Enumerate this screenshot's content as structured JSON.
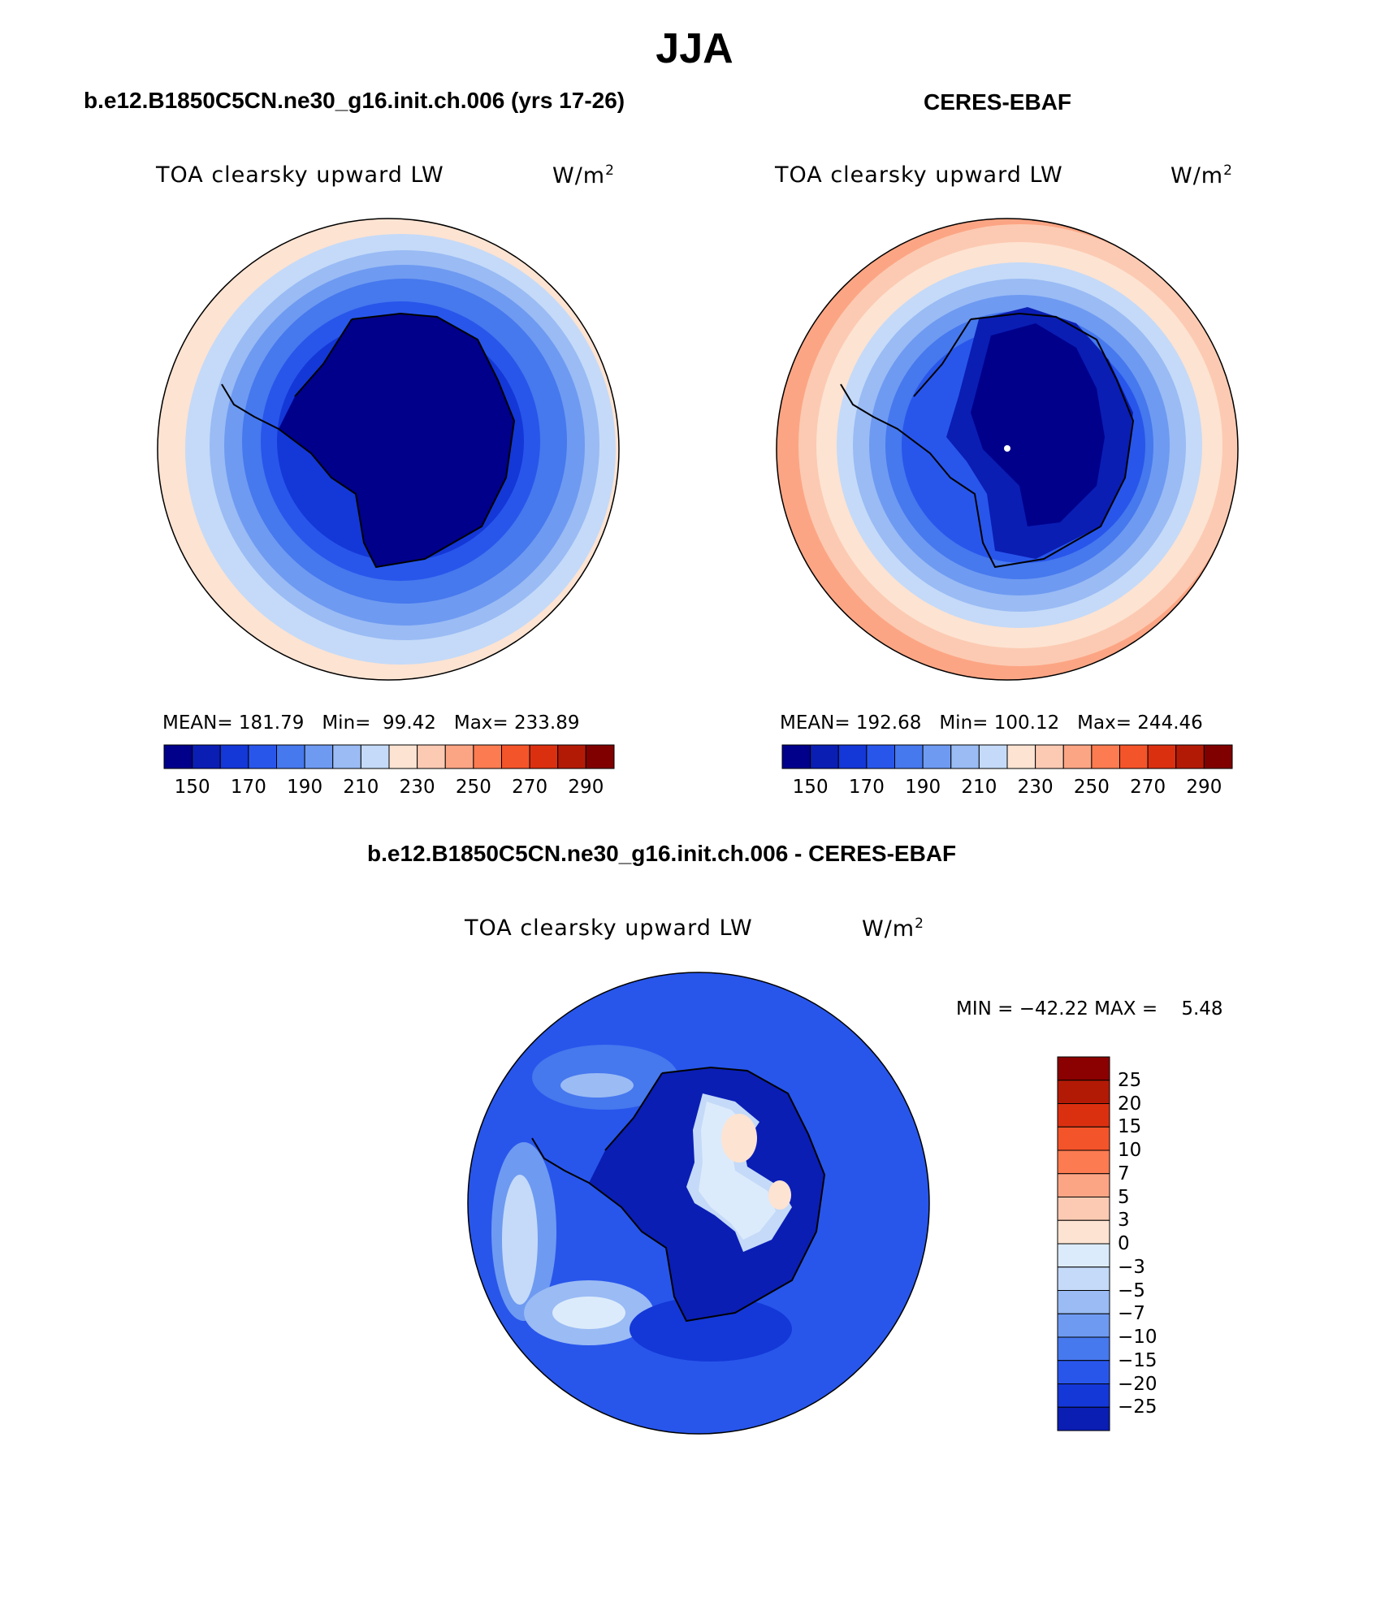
{
  "page": {
    "title": "JJA"
  },
  "panels": {
    "model": {
      "title": "b.e12.B1850C5CN.ne30_g16.init.ch.006 (yrs 17-26)",
      "variable": "TOA clearsky upward LW",
      "units_base": "W/m",
      "units_exp": "2",
      "stats": {
        "mean_label": "MEAN=",
        "mean": "181.79",
        "min_label": "Min=",
        "min": "99.42",
        "max_label": "Max=",
        "max": "233.89"
      }
    },
    "obs": {
      "title": "CERES-EBAF",
      "variable": "TOA clearsky upward LW",
      "units_base": "W/m",
      "units_exp": "2",
      "stats": {
        "mean_label": "MEAN=",
        "mean": "192.68",
        "min_label": "Min=",
        "min": "100.12",
        "max_label": "Max=",
        "max": "244.46"
      }
    },
    "diff": {
      "title": "b.e12.B1850C5CN.ne30_g16.init.ch.006 - CERES-EBAF",
      "variable": "TOA clearsky upward LW",
      "units_base": "W/m",
      "units_exp": "2",
      "minmax": {
        "min_label": "MIN =",
        "min": "−42.22",
        "max_label": "MAX =",
        "max": "5.48"
      }
    }
  },
  "chart_data": [
    {
      "type": "heatmap",
      "projection": "south-polar-stereographic",
      "title": "b.e12.B1850C5CN.ne30_g16.init.ch.006 (yrs 17-26)",
      "variable": "TOA clearsky upward LW",
      "units": "W/m2",
      "contour_levels": [
        140,
        150,
        160,
        170,
        180,
        190,
        200,
        210,
        220,
        230,
        240,
        250,
        260,
        270,
        280,
        290
      ],
      "colorbar_tick_labels": [
        "150",
        "170",
        "190",
        "210",
        "230",
        "250",
        "270",
        "290"
      ],
      "colors": [
        "#00008b",
        "#0a1eb4",
        "#1437d7",
        "#2856eb",
        "#4678ee",
        "#6e9af1",
        "#9abbf4",
        "#c4daf8",
        "#fde3d2",
        "#fccab2",
        "#fca584",
        "#fc7b50",
        "#f4542a",
        "#db3010",
        "#b31a06",
        "#800000"
      ],
      "stats": {
        "mean": 181.79,
        "min": 99.42,
        "max": 233.89
      }
    },
    {
      "type": "heatmap",
      "projection": "south-polar-stereographic",
      "title": "CERES-EBAF",
      "variable": "TOA clearsky upward LW",
      "units": "W/m2",
      "contour_levels": [
        140,
        150,
        160,
        170,
        180,
        190,
        200,
        210,
        220,
        230,
        240,
        250,
        260,
        270,
        280,
        290
      ],
      "colorbar_tick_labels": [
        "150",
        "170",
        "190",
        "210",
        "230",
        "250",
        "270",
        "290"
      ],
      "colors": [
        "#00008b",
        "#0a1eb4",
        "#1437d7",
        "#2856eb",
        "#4678ee",
        "#6e9af1",
        "#9abbf4",
        "#c4daf8",
        "#fde3d2",
        "#fccab2",
        "#fca584",
        "#fc7b50",
        "#f4542a",
        "#db3010",
        "#b31a06",
        "#800000"
      ],
      "stats": {
        "mean": 192.68,
        "min": 100.12,
        "max": 244.46
      }
    },
    {
      "type": "heatmap",
      "projection": "south-polar-stereographic",
      "title": "b.e12.B1850C5CN.ne30_g16.init.ch.006 - CERES-EBAF",
      "variable": "TOA clearsky upward LW",
      "units": "W/m2",
      "contour_levels": [
        25,
        20,
        15,
        10,
        7,
        5,
        3,
        0,
        -3,
        -5,
        -7,
        -10,
        -15,
        -20,
        -25
      ],
      "colorbar_tick_labels": [
        "25",
        "20",
        "15",
        "10",
        "7",
        "5",
        "3",
        "0",
        "−3",
        "−5",
        "−7",
        "−10",
        "−15",
        "−20",
        "−25"
      ],
      "colors": [
        "#8b0000",
        "#b31a06",
        "#db3010",
        "#f4542a",
        "#fc7b50",
        "#fca584",
        "#fccab2",
        "#fde3d2",
        "#dcebfb",
        "#c4daf8",
        "#9abbf4",
        "#6e9af1",
        "#4678ee",
        "#2856eb",
        "#1437d7",
        "#0a1eb4"
      ],
      "stats": {
        "min": -42.22,
        "max": 5.48
      }
    }
  ]
}
